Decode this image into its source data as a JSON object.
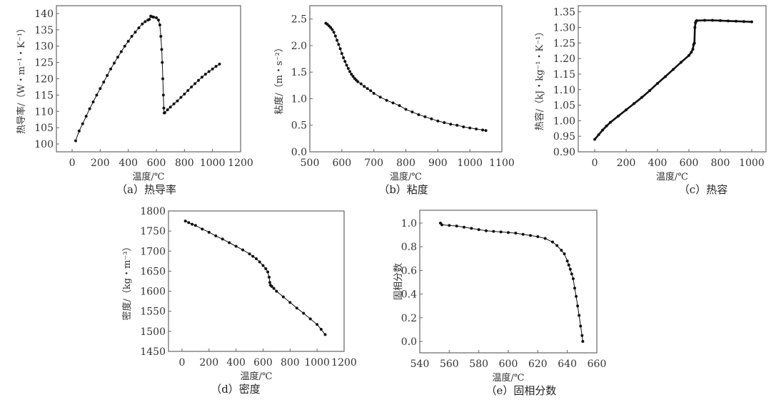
{
  "chart_data": [
    {
      "id": "a",
      "type": "scatter",
      "caption": "（a）热导率",
      "xlabel": "温度/℃",
      "ylabel": "热导率/（W・m⁻¹・K⁻¹）",
      "xlim": [
        -112,
        1200
      ],
      "ylim": [
        97.6,
        142.4
      ],
      "xticks": [
        0,
        200,
        400,
        600,
        800,
        1000,
        1200
      ],
      "xtick_labels": [
        "0",
        "200",
        "400",
        "600",
        "800",
        "1000",
        "1200"
      ],
      "yticks": [
        100,
        105,
        110,
        115,
        120,
        125,
        130,
        135,
        140
      ],
      "ytick_labels": [
        "100",
        "105",
        "110",
        "115",
        "120",
        "125",
        "130",
        "135",
        "140"
      ],
      "x": [
        25,
        50,
        75,
        100,
        125,
        150,
        175,
        200,
        225,
        250,
        275,
        300,
        325,
        350,
        375,
        400,
        425,
        450,
        475,
        500,
        520,
        540,
        550,
        560,
        570,
        580,
        600,
        615,
        625,
        632,
        638,
        642,
        646,
        650,
        653,
        656,
        660,
        680,
        700,
        725,
        750,
        775,
        800,
        825,
        850,
        875,
        900,
        925,
        950,
        975,
        1000,
        1025,
        1050
      ],
      "y": [
        101,
        104,
        106.2,
        108.5,
        110.8,
        112.9,
        115,
        117,
        119,
        121,
        123,
        124.8,
        126.6,
        128.3,
        130,
        131.5,
        133,
        134.3,
        135.6,
        136.8,
        137.5,
        138,
        138.2,
        139.2,
        139,
        138.9,
        138.7,
        138,
        136.5,
        133,
        129,
        125,
        120,
        115,
        111,
        109.5,
        109.6,
        110.5,
        111.3,
        112.3,
        113.2,
        114.3,
        115.3,
        116.4,
        117.5,
        118.5,
        119.5,
        120.5,
        121.4,
        122.2,
        123,
        123.8,
        124.5
      ]
    },
    {
      "id": "b",
      "type": "scatter",
      "caption": "（b）粘度",
      "xlabel": "温度/℃",
      "ylabel": "粘度/（m・s⁻²）",
      "xlim": [
        500,
        1100
      ],
      "ylim": [
        0,
        2.75
      ],
      "xticks": [
        500,
        600,
        700,
        800,
        900,
        1000,
        1100
      ],
      "xtick_labels": [
        "500",
        "600",
        "700",
        "800",
        "900",
        "1000",
        "1100"
      ],
      "yticks": [
        0,
        0.5,
        1.0,
        1.5,
        2.0,
        2.5
      ],
      "ytick_labels": [
        "0.0",
        "0.5",
        "1.0",
        "1.5",
        "2.0",
        "2.5"
      ],
      "x": [
        550,
        555,
        560,
        565,
        570,
        575,
        580,
        585,
        590,
        595,
        600,
        605,
        610,
        615,
        620,
        625,
        630,
        635,
        640,
        645,
        650,
        660,
        670,
        680,
        690,
        700,
        720,
        740,
        760,
        780,
        800,
        820,
        840,
        860,
        880,
        900,
        920,
        940,
        960,
        980,
        1000,
        1020,
        1040,
        1050
      ],
      "y": [
        2.42,
        2.4,
        2.37,
        2.34,
        2.3,
        2.25,
        2.18,
        2.1,
        2.02,
        1.94,
        1.85,
        1.77,
        1.7,
        1.63,
        1.57,
        1.51,
        1.46,
        1.42,
        1.38,
        1.35,
        1.32,
        1.28,
        1.23,
        1.19,
        1.15,
        1.1,
        1.03,
        0.97,
        0.92,
        0.87,
        0.8,
        0.75,
        0.7,
        0.66,
        0.62,
        0.58,
        0.55,
        0.52,
        0.5,
        0.47,
        0.45,
        0.43,
        0.41,
        0.4
      ]
    },
    {
      "id": "c",
      "type": "scatter",
      "caption": "（c）热容",
      "xlabel": "温度/℃",
      "ylabel": "热容/（kJ・kg⁻¹・K⁻¹）",
      "xlim": [
        -105,
        1091
      ],
      "ylim": [
        0.9,
        1.37
      ],
      "xticks": [
        0,
        200,
        400,
        600,
        800,
        1000
      ],
      "xtick_labels": [
        "0",
        "200",
        "400",
        "600",
        "800",
        "1000"
      ],
      "yticks": [
        0.9,
        0.95,
        1.0,
        1.05,
        1.1,
        1.15,
        1.2,
        1.25,
        1.3,
        1.35
      ],
      "ytick_labels": [
        "0.90",
        "0.95",
        "1.00",
        "1.05",
        "1.10",
        "1.15",
        "1.20",
        "1.25",
        "1.30",
        "1.35"
      ],
      "x": [
        0,
        25,
        50,
        75,
        100,
        150,
        200,
        250,
        300,
        350,
        400,
        450,
        500,
        550,
        600,
        615,
        625,
        630,
        635,
        638,
        642,
        646,
        650,
        700,
        750,
        800,
        850,
        900,
        950,
        1000
      ],
      "y": [
        0.94,
        0.955,
        0.97,
        0.983,
        0.995,
        1.015,
        1.035,
        1.055,
        1.075,
        1.097,
        1.12,
        1.142,
        1.165,
        1.188,
        1.21,
        1.22,
        1.23,
        1.245,
        1.25,
        1.3,
        1.315,
        1.32,
        1.322,
        1.323,
        1.323,
        1.322,
        1.321,
        1.32,
        1.319,
        1.318
      ]
    },
    {
      "id": "d",
      "type": "scatter",
      "caption": "（d）密度",
      "xlabel": "温度/℃",
      "ylabel": "密度/（kg・m⁻³）",
      "xlim": [
        -100,
        1200
      ],
      "ylim": [
        1450,
        1800
      ],
      "xticks": [
        0,
        200,
        400,
        600,
        800,
        1000,
        1200
      ],
      "xtick_labels": [
        "0",
        "200",
        "400",
        "600",
        "800",
        "1000",
        "1200"
      ],
      "yticks": [
        1450,
        1500,
        1550,
        1600,
        1650,
        1700,
        1750,
        1800
      ],
      "ytick_labels": [
        "1450",
        "1500",
        "1550",
        "1600",
        "1650",
        "1700",
        "1750",
        "1800"
      ],
      "x": [
        25,
        50,
        75,
        100,
        150,
        200,
        250,
        300,
        350,
        400,
        450,
        500,
        525,
        550,
        575,
        600,
        620,
        635,
        645,
        650,
        655,
        665,
        680,
        700,
        750,
        800,
        850,
        900,
        950,
        1000,
        1030,
        1060
      ],
      "y": [
        1775,
        1771,
        1767,
        1764,
        1755,
        1747,
        1738,
        1730,
        1721,
        1712,
        1703,
        1693,
        1687,
        1681,
        1673,
        1664,
        1656,
        1648,
        1635,
        1622,
        1615,
        1612,
        1607,
        1600,
        1586,
        1572,
        1558,
        1545,
        1531,
        1517,
        1505,
        1492
      ]
    },
    {
      "id": "e",
      "type": "scatter",
      "caption": "（e）固相分数",
      "xlabel": "温度/℃",
      "ylabel": "固相分数",
      "xlim": [
        540,
        660
      ],
      "ylim": [
        -0.096,
        1.108
      ],
      "xticks": [
        540,
        560,
        580,
        600,
        620,
        640,
        660
      ],
      "xtick_labels": [
        "540",
        "560",
        "580",
        "600",
        "620",
        "640",
        "660"
      ],
      "yticks": [
        0,
        0.2,
        0.4,
        0.6,
        0.8,
        1.0
      ],
      "ytick_labels": [
        "0.0",
        "0.2",
        "0.4",
        "0.6",
        "0.8",
        "1.0"
      ],
      "x": [
        554,
        555,
        560,
        565,
        570,
        575,
        580,
        585,
        590,
        595,
        600,
        605,
        610,
        615,
        620,
        625,
        630,
        633,
        636,
        638,
        640,
        641,
        642,
        643,
        644,
        645,
        646,
        647,
        648,
        649,
        650,
        650.5
      ],
      "y": [
        1.0,
        0.985,
        0.98,
        0.975,
        0.965,
        0.955,
        0.945,
        0.935,
        0.93,
        0.925,
        0.92,
        0.915,
        0.905,
        0.895,
        0.885,
        0.87,
        0.84,
        0.81,
        0.77,
        0.74,
        0.68,
        0.645,
        0.61,
        0.57,
        0.53,
        0.45,
        0.38,
        0.3,
        0.22,
        0.13,
        0.05,
        0.0
      ]
    }
  ]
}
